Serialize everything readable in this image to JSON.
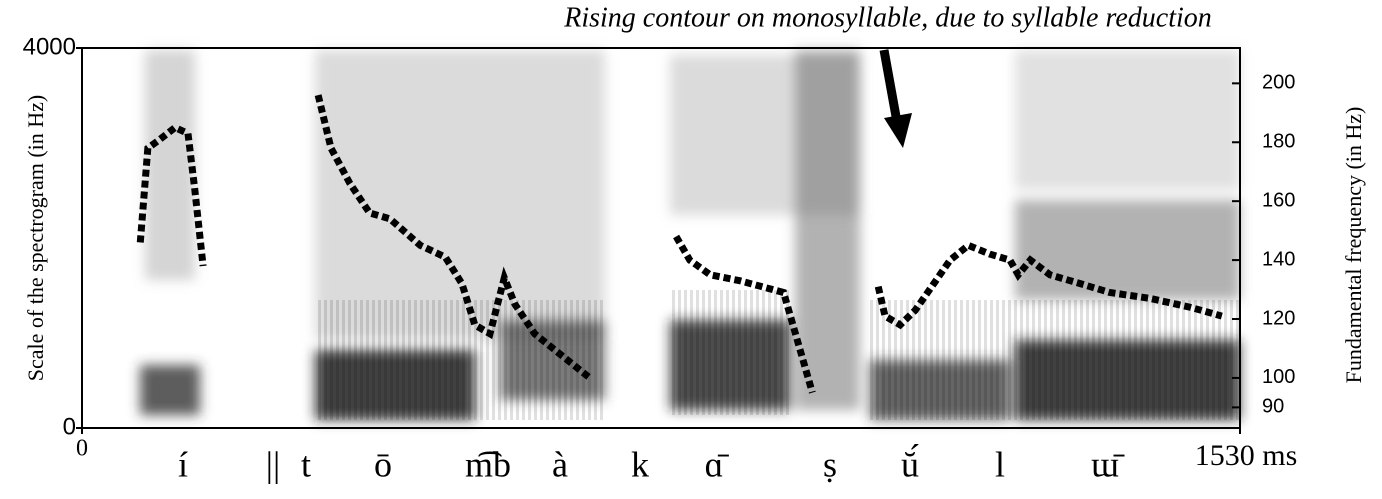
{
  "chart_data": {
    "type": "line",
    "annotation": "Rising contour on monosyllable, due to syllable reduction",
    "ylabel": "Scale of the spectrogram (in Hz)",
    "y2label": "Fundamental frequency (in Hz)",
    "xlim": [
      0,
      1530
    ],
    "xticks": [
      0,
      {
        "value": 1530,
        "label": "1530 ms"
      }
    ],
    "ylim": [
      0,
      4000
    ],
    "yticks": [
      0,
      4000
    ],
    "y2lim": [
      83,
      212
    ],
    "y2ticks": [
      90,
      100,
      120,
      140,
      160,
      180,
      200
    ],
    "segments": [
      "í",
      "||",
      "t",
      "ō",
      "m͡b",
      "à",
      "k",
      "ɑ̄",
      "ṣ",
      "ŭ́",
      "l",
      "ɯ̄"
    ],
    "x": [
      77,
      87,
      103,
      123,
      140,
      149,
      160,
      null,
      312,
      329,
      354,
      380,
      407,
      447,
      480,
      502,
      519,
      539,
      558,
      572,
      598,
      632,
      671,
      null,
      785,
      803,
      830,
      869,
      927,
      946,
      965,
      null,
      1052,
      1061,
      1081,
      1101,
      1120,
      1147,
      1171,
      1200,
      1226,
      1237,
      1253,
      1279,
      1319,
      1358,
      1411,
      1464,
      1506
    ],
    "series": [
      {
        "color": "#000000",
        "axis": "y2",
        "values": [
          146,
          178,
          181,
          185,
          183,
          164,
          138,
          null,
          196,
          178,
          166,
          156,
          154,
          145,
          141,
          132,
          118,
          115,
          134,
          125,
          115,
          108,
          100,
          null,
          148,
          140,
          135,
          133,
          129,
          112,
          95,
          null,
          131,
          121,
          118,
          123,
          130,
          140,
          145,
          142,
          140,
          135,
          140,
          135,
          132,
          129,
          127,
          124,
          121
        ]
      }
    ]
  }
}
